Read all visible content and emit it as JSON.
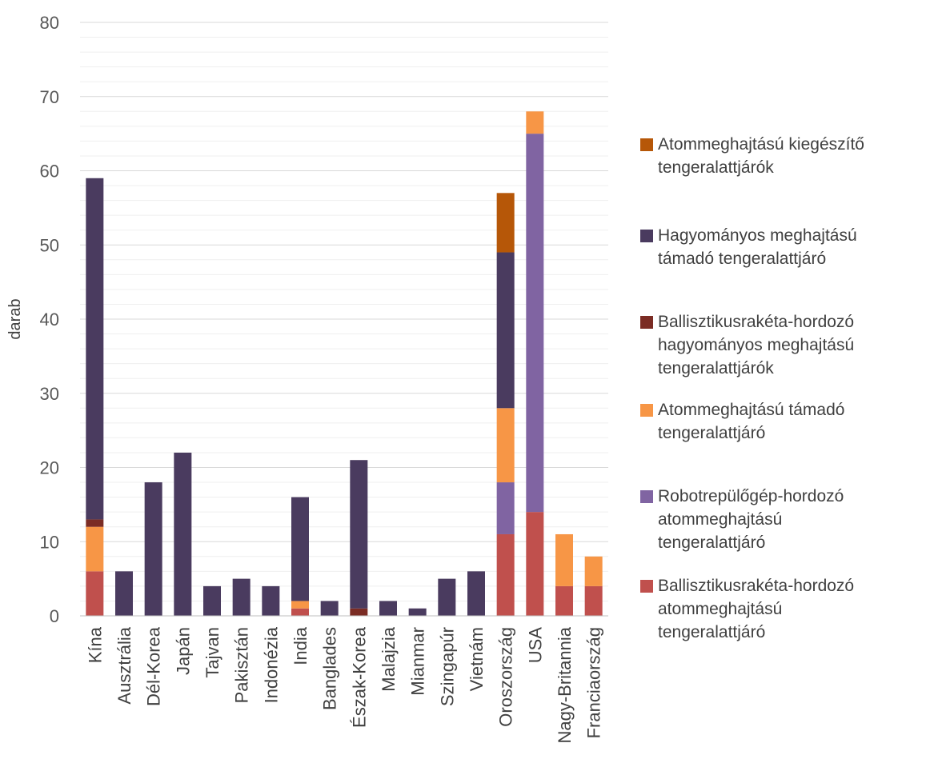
{
  "chart_data": {
    "type": "bar",
    "stacked": true,
    "title": "",
    "xlabel": "",
    "ylabel": "darab",
    "ylim": [
      0,
      80
    ],
    "yticks": [
      0,
      10,
      20,
      30,
      40,
      50,
      60,
      70,
      80
    ],
    "grid": true,
    "legend_position": "right",
    "categories": [
      "Kína",
      "Ausztrália",
      "Dél-Korea",
      "Japán",
      "Tajvan",
      "Pakisztán",
      "Indonézia",
      "India",
      "Banglades",
      "Észak-Korea",
      "Malajzia",
      "Mianmar",
      "Szingapúr",
      "Vietnám",
      "Oroszország",
      "USA",
      "Nagy-Britannia",
      "Franciaország"
    ],
    "series": [
      {
        "name": "Ballisztikusrakéta-hordozó atommeghajtású tengeralattjáró",
        "color": "#C0504D",
        "values": [
          6,
          0,
          0,
          0,
          0,
          0,
          0,
          1,
          0,
          0,
          0,
          0,
          0,
          0,
          11,
          14,
          4,
          4
        ]
      },
      {
        "name": "Robotrepülőgép-hordozó atommeghajtású tengeralattjáró",
        "color": "#8064A2",
        "values": [
          0,
          0,
          0,
          0,
          0,
          0,
          0,
          0,
          0,
          0,
          0,
          0,
          0,
          0,
          7,
          51,
          0,
          0
        ]
      },
      {
        "name": "Atommeghajtású támadó tengeralattjáró",
        "color": "#F79646",
        "values": [
          6,
          0,
          0,
          0,
          0,
          0,
          0,
          1,
          0,
          0,
          0,
          0,
          0,
          0,
          10,
          3,
          7,
          4
        ]
      },
      {
        "name": "Ballisztikusrakéta-hordozó hagyományos meghajtású tengeralattjárók",
        "color": "#7B2C24",
        "values": [
          1,
          0,
          0,
          0,
          0,
          0,
          0,
          0,
          0,
          1,
          0,
          0,
          0,
          0,
          0,
          0,
          0,
          0
        ]
      },
      {
        "name": "Hagyományos meghajtású támadó tengeralattjáró",
        "color": "#4A3B5F",
        "values": [
          46,
          6,
          18,
          22,
          4,
          5,
          4,
          14,
          2,
          20,
          2,
          1,
          5,
          6,
          21,
          0,
          0,
          0
        ]
      },
      {
        "name": "Atommeghajtású kiegészítő tengeralattjárók",
        "color": "#B65708",
        "values": [
          0,
          0,
          0,
          0,
          0,
          0,
          0,
          0,
          0,
          0,
          0,
          0,
          0,
          0,
          8,
          0,
          0,
          0
        ]
      }
    ],
    "legend": [
      {
        "lines": [
          "Atommeghajtású kiegészítő",
          "tengeralattjárók"
        ],
        "color": "#B65708"
      },
      {
        "lines": [
          "Hagyományos meghajtású",
          "támadó tengeralattjáró"
        ],
        "color": "#4A3B5F"
      },
      {
        "lines": [
          "Ballisztikusrakéta-hordozó",
          "hagyományos meghajtású",
          "tengeralattjárók"
        ],
        "color": "#7B2C24"
      },
      {
        "lines": [
          "Atommeghajtású támadó",
          "tengeralattjáró"
        ],
        "color": "#F79646"
      },
      {
        "lines": [
          "Robotrepülőgép-hordozó",
          "atommeghajtású",
          "tengeralattjáró"
        ],
        "color": "#8064A2"
      },
      {
        "lines": [
          "Ballisztikusrakéta-hordozó",
          "atommeghajtású",
          "tengeralattjáró"
        ],
        "color": "#C0504D"
      }
    ]
  }
}
